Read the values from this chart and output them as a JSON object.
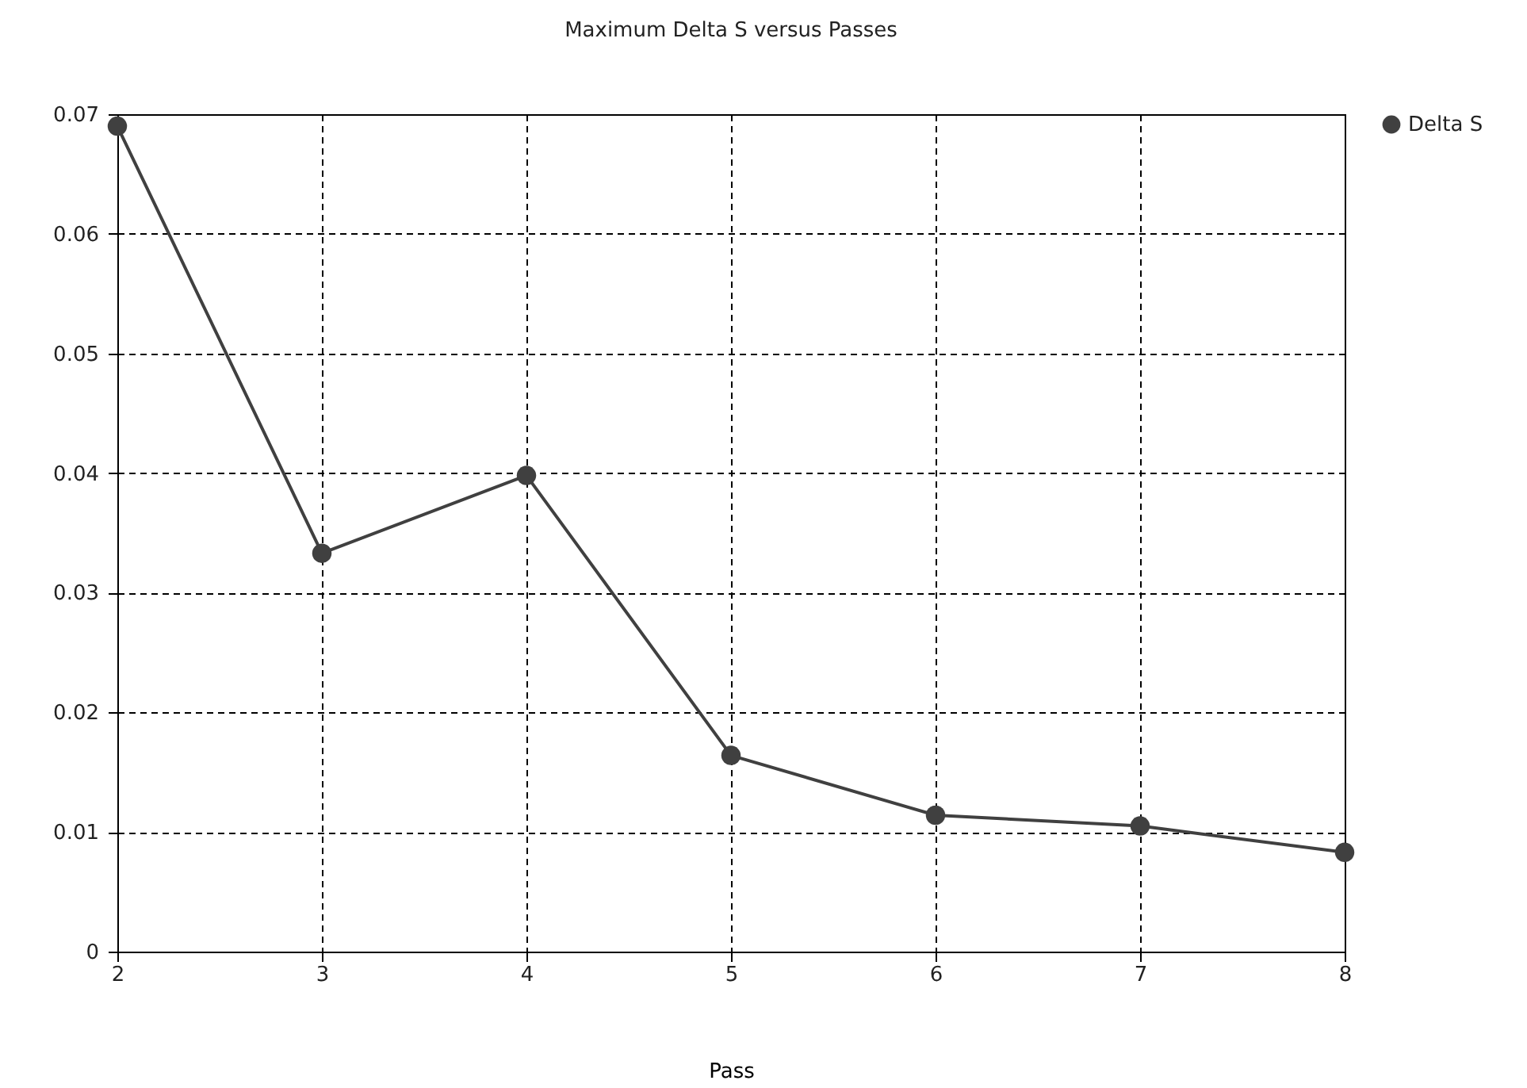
{
  "chart_data": {
    "type": "line",
    "title": "Maximum Delta S versus Passes",
    "xlabel": "Pass",
    "x": [
      2,
      3,
      4,
      5,
      6,
      7,
      8
    ],
    "series": [
      {
        "name": "Delta S",
        "color": "#404040",
        "values": [
          0.069,
          0.0333,
          0.0398,
          0.0164,
          0.0114,
          0.0105,
          0.0083
        ]
      }
    ],
    "xlim": [
      2,
      8
    ],
    "xticks": [
      2,
      3,
      4,
      5,
      6,
      7,
      8
    ],
    "ylim": [
      0,
      0.07
    ],
    "yticks": [
      0,
      0.01,
      0.02,
      0.03,
      0.04,
      0.05,
      0.06,
      0.07
    ],
    "grid": true,
    "legend": "top right",
    "marker": "circle",
    "line_style": "solid"
  }
}
